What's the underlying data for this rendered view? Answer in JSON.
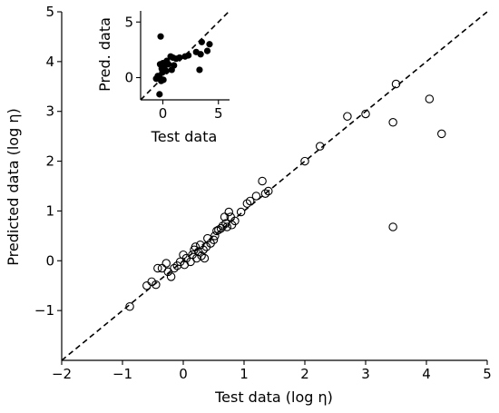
{
  "chart_data": [
    {
      "type": "scatter",
      "title": "",
      "xlabel": "Test data (log η)",
      "ylabel": "Predicted data (log η)",
      "xlim": [
        -2,
        5
      ],
      "ylim": [
        -2,
        5
      ],
      "xticks": [
        -2,
        -1,
        0,
        1,
        2,
        3,
        4,
        5
      ],
      "yticks": [
        -1,
        0,
        1,
        2,
        3,
        4,
        5
      ],
      "xtick_labels": [
        "−2",
        "−1",
        "0",
        "1",
        "2",
        "3",
        "4",
        "5"
      ],
      "ytick_labels": [
        "−1",
        "0",
        "1",
        "2",
        "3",
        "4",
        "5"
      ],
      "marker": "open-circle",
      "reference_line": {
        "style": "dashed",
        "slope": 1,
        "intercept": 0
      },
      "grid": false,
      "points": [
        [
          -0.88,
          -0.92
        ],
        [
          -0.6,
          -0.5
        ],
        [
          -0.52,
          -0.42
        ],
        [
          -0.45,
          -0.48
        ],
        [
          -0.42,
          -0.15
        ],
        [
          -0.35,
          -0.15
        ],
        [
          -0.28,
          -0.05
        ],
        [
          -0.25,
          -0.22
        ],
        [
          -0.2,
          -0.32
        ],
        [
          -0.15,
          -0.15
        ],
        [
          -0.1,
          -0.1
        ],
        [
          -0.05,
          -0.02
        ],
        [
          0.0,
          0.12
        ],
        [
          0.02,
          -0.08
        ],
        [
          0.05,
          0.05
        ],
        [
          0.12,
          -0.02
        ],
        [
          0.15,
          0.12
        ],
        [
          0.18,
          0.22
        ],
        [
          0.2,
          0.28
        ],
        [
          0.22,
          0.05
        ],
        [
          0.25,
          0.18
        ],
        [
          0.28,
          0.32
        ],
        [
          0.3,
          0.1
        ],
        [
          0.33,
          0.22
        ],
        [
          0.35,
          0.05
        ],
        [
          0.38,
          0.28
        ],
        [
          0.4,
          0.45
        ],
        [
          0.45,
          0.35
        ],
        [
          0.5,
          0.42
        ],
        [
          0.52,
          0.5
        ],
        [
          0.55,
          0.6
        ],
        [
          0.58,
          0.62
        ],
        [
          0.62,
          0.65
        ],
        [
          0.65,
          0.7
        ],
        [
          0.68,
          0.88
        ],
        [
          0.7,
          0.75
        ],
        [
          0.72,
          0.68
        ],
        [
          0.75,
          0.98
        ],
        [
          0.78,
          0.88
        ],
        [
          0.8,
          0.72
        ],
        [
          0.85,
          0.8
        ],
        [
          0.95,
          0.98
        ],
        [
          1.05,
          1.15
        ],
        [
          1.1,
          1.2
        ],
        [
          1.2,
          1.3
        ],
        [
          1.3,
          1.6
        ],
        [
          1.35,
          1.35
        ],
        [
          1.4,
          1.4
        ],
        [
          2.0,
          2.0
        ],
        [
          2.25,
          2.3
        ],
        [
          2.7,
          2.9
        ],
        [
          3.0,
          2.95
        ],
        [
          3.45,
          0.68
        ],
        [
          3.45,
          2.78
        ],
        [
          3.5,
          3.55
        ],
        [
          4.05,
          3.25
        ],
        [
          4.25,
          2.55
        ]
      ]
    },
    {
      "type": "scatter",
      "title": "",
      "xlabel": "Test data",
      "ylabel": "Pred. data",
      "xlim": [
        -2,
        6
      ],
      "ylim": [
        -2,
        6
      ],
      "xticks": [
        0,
        5
      ],
      "yticks": [
        0,
        5
      ],
      "xtick_labels": [
        "0",
        "5"
      ],
      "ytick_labels": [
        "0",
        "5"
      ],
      "marker": "filled-circle",
      "reference_line": {
        "style": "dashed",
        "slope": 1,
        "intercept": 0
      },
      "grid": false,
      "points": [
        [
          -0.6,
          -0.1
        ],
        [
          -0.45,
          0.15
        ],
        [
          -0.3,
          0.0
        ],
        [
          -0.25,
          1.2
        ],
        [
          -0.2,
          3.7
        ],
        [
          -0.15,
          -0.3
        ],
        [
          -0.1,
          0.8
        ],
        [
          -0.05,
          0.45
        ],
        [
          0.0,
          1.3
        ],
        [
          0.05,
          -0.2
        ],
        [
          0.1,
          0.9
        ],
        [
          0.2,
          1.1
        ],
        [
          0.3,
          0.6
        ],
        [
          0.35,
          1.5
        ],
        [
          0.5,
          1.2
        ],
        [
          0.7,
          1.9
        ],
        [
          0.8,
          0.7
        ],
        [
          0.9,
          1.8
        ],
        [
          1.0,
          1.1
        ],
        [
          1.2,
          1.7
        ],
        [
          1.5,
          1.8
        ],
        [
          2.0,
          1.9
        ],
        [
          2.3,
          2.0
        ],
        [
          3.0,
          2.3
        ],
        [
          3.3,
          0.7
        ],
        [
          3.4,
          2.1
        ],
        [
          3.5,
          3.2
        ],
        [
          4.0,
          2.4
        ],
        [
          4.2,
          3.0
        ],
        [
          -0.3,
          -1.5
        ]
      ]
    }
  ]
}
